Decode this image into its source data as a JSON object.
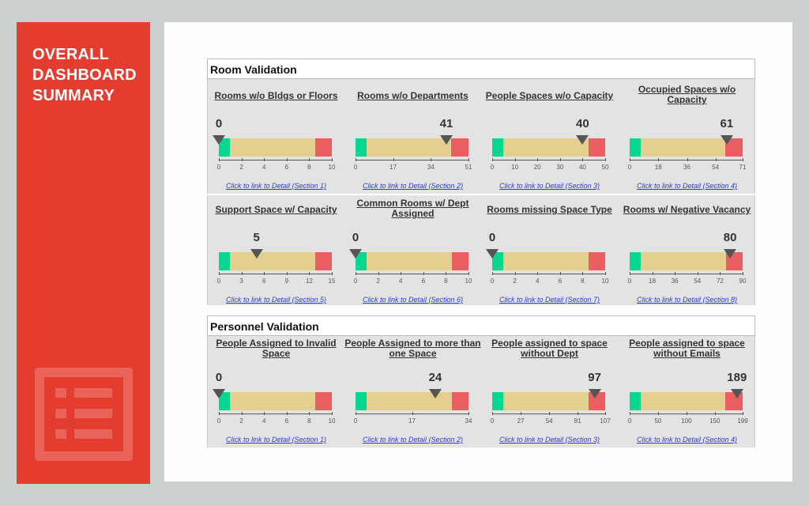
{
  "sidebar": {
    "title_lines": [
      "OVERALL",
      "DASHBOARD",
      "SUMMARY"
    ],
    "icon": "list-icon",
    "color": "#e43c2f"
  },
  "colors": {
    "green": "#05d78e",
    "amber": "#e5cf8f",
    "red": "#ea5e62",
    "marker": "#555555",
    "link": "#2b3bd3"
  },
  "sections": [
    {
      "title": "Room Validation",
      "gauges": [
        {
          "title_lines": [
            "Rooms w/o Bldgs or Floors"
          ],
          "value": 0,
          "max": 10,
          "ticks": [
            0,
            2,
            4,
            6,
            8,
            10
          ],
          "green_end": 1,
          "red_start": 8.5,
          "link": "Click to link to Detail (Section 1)"
        },
        {
          "title_lines": [
            "Rooms w/o Departments"
          ],
          "value": 41,
          "max": 51,
          "ticks": [
            0,
            17,
            34,
            51
          ],
          "green_end": 5,
          "red_start": 43,
          "link": "Click to link to Detail (Section 2)"
        },
        {
          "title_lines": [
            "People Spaces w/o Capacity"
          ],
          "value": 40,
          "max": 50,
          "ticks": [
            0,
            10,
            20,
            30,
            40,
            50
          ],
          "green_end": 5,
          "red_start": 42.5,
          "link": "Click to link to Detail (Section 3)"
        },
        {
          "title_lines": [
            "Occupied Spaces w/o",
            "Capacity"
          ],
          "value": 61,
          "max": 71,
          "ticks": [
            0,
            18,
            36,
            54,
            71
          ],
          "green_end": 7,
          "red_start": 60,
          "link": "Click to link to Detail (Section 4)"
        },
        {
          "title_lines": [
            "Support Space w/ Capacity"
          ],
          "value": 5,
          "max": 15,
          "ticks": [
            0,
            3,
            6,
            9,
            12,
            15
          ],
          "green_end": 1.5,
          "red_start": 12.75,
          "link": "Click to link to Detail (Section 5)"
        },
        {
          "title_lines": [
            "Common Rooms w/ Dept",
            "Assigned"
          ],
          "value": 0,
          "max": 10,
          "ticks": [
            0,
            2,
            4,
            6,
            8,
            10
          ],
          "green_end": 1,
          "red_start": 8.5,
          "link": "Click to link to Detail (Section 6)"
        },
        {
          "title_lines": [
            "Rooms missing Space Type"
          ],
          "value": 0,
          "max": 10,
          "ticks": [
            0,
            2,
            4,
            6,
            8,
            10
          ],
          "green_end": 1,
          "red_start": 8.5,
          "link": "Click to link to Detail (Section 7)"
        },
        {
          "title_lines": [
            "Rooms w/ Negative Vacancy"
          ],
          "value": 80,
          "max": 90,
          "ticks": [
            0,
            18,
            36,
            54,
            72,
            90
          ],
          "green_end": 9,
          "red_start": 76.5,
          "link": "Click to link to Detail (Section 8)"
        }
      ]
    },
    {
      "title": "Personnel Validation",
      "gauges": [
        {
          "title_lines": [
            "People Assigned to Invalid",
            "Space"
          ],
          "value": 0,
          "max": 10,
          "ticks": [
            0,
            2,
            4,
            6,
            8,
            10
          ],
          "green_end": 1,
          "red_start": 8.5,
          "link": "Click to link to Detail (Section 1)"
        },
        {
          "title_lines": [
            "People Assigned to more than",
            "one Space"
          ],
          "value": 24,
          "max": 34,
          "ticks": [
            0,
            17,
            34
          ],
          "green_end": 3.4,
          "red_start": 28.9,
          "link": "Click to link to Detail (Section 2)"
        },
        {
          "title_lines": [
            "People assigned to space",
            "without Dept"
          ],
          "value": 97,
          "max": 107,
          "ticks": [
            0,
            27,
            54,
            81,
            107
          ],
          "green_end": 10.7,
          "red_start": 91,
          "link": "Click to link to Detail (Section 3)"
        },
        {
          "title_lines": [
            "People assigned to space",
            "without Emails"
          ],
          "value": 189,
          "max": 199,
          "ticks": [
            0,
            50,
            100,
            150,
            199
          ],
          "green_end": 20,
          "red_start": 169,
          "link": "Click to link to Detail (Section 4)"
        }
      ]
    }
  ]
}
